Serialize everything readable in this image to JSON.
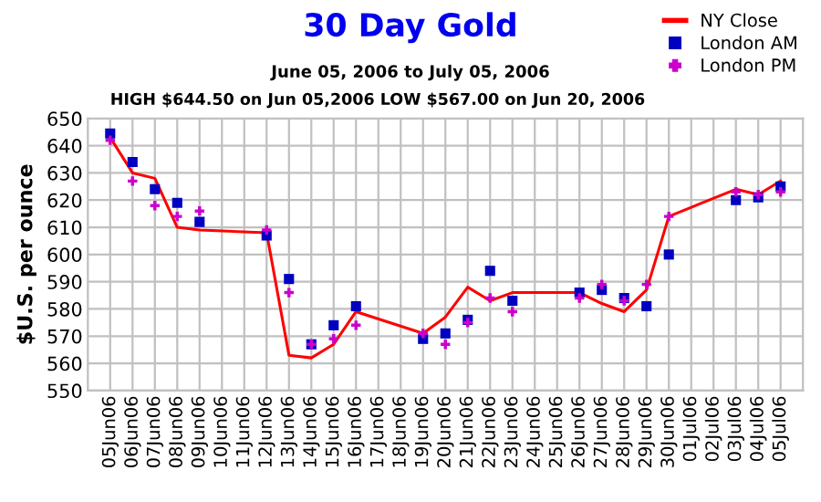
{
  "chart_data": {
    "type": "line",
    "title": "30 Day Gold",
    "subtitle": "June 05, 2006 to July 05, 2006",
    "annotations": [
      "HIGH $644.50 on Jun 05,2006 LOW $567.00 on Jun 20, 2006"
    ],
    "ylabel": "$U.S. per ounce",
    "categories": [
      "05Jun06",
      "06Jun06",
      "07Jun06",
      "08Jun06",
      "09Jun06",
      "10Jun06",
      "11Jun06",
      "12Jun06",
      "13Jun06",
      "14Jun06",
      "15Jun06",
      "16Jun06",
      "17Jun06",
      "18Jun06",
      "19Jun06",
      "20Jun06",
      "21Jun06",
      "22Jun06",
      "23Jun06",
      "24Jun06",
      "25Jun06",
      "26Jun06",
      "27Jun06",
      "28Jun06",
      "29Jun06",
      "30Jun06",
      "01Jul06",
      "02Jul06",
      "03Jul06",
      "04Jul06",
      "05Jul06"
    ],
    "series": [
      {
        "name": "NY Close",
        "color": "#ff0000",
        "marker": "none",
        "values": [
          643,
          630,
          628,
          610,
          609,
          null,
          null,
          608,
          563,
          562,
          567,
          579,
          null,
          null,
          571,
          577,
          588,
          583,
          586,
          null,
          null,
          586,
          582,
          579,
          587,
          614,
          null,
          null,
          624,
          622,
          627
        ]
      },
      {
        "name": "London AM",
        "type": "scatter",
        "color": "#0000c0",
        "marker": "square",
        "values": [
          644.5,
          634,
          624,
          619,
          612,
          null,
          null,
          607,
          591,
          567,
          574,
          581,
          null,
          null,
          569,
          571,
          576,
          594,
          583,
          null,
          null,
          586,
          587,
          584,
          581,
          600,
          null,
          null,
          620,
          621,
          625
        ]
      },
      {
        "name": "London PM",
        "type": "scatter",
        "color": "#cc00cc",
        "marker": "cross",
        "values": [
          642,
          627,
          618,
          614,
          616,
          null,
          null,
          609,
          586,
          567,
          569,
          574,
          null,
          null,
          571,
          567,
          575,
          584,
          579,
          null,
          null,
          584,
          589,
          583,
          589,
          614,
          null,
          null,
          623,
          622,
          623
        ]
      }
    ],
    "ylim": [
      550,
      650
    ],
    "yticks": [
      550,
      560,
      570,
      580,
      590,
      600,
      610,
      620,
      630,
      640,
      650
    ],
    "grid": true,
    "legend": "top right"
  }
}
